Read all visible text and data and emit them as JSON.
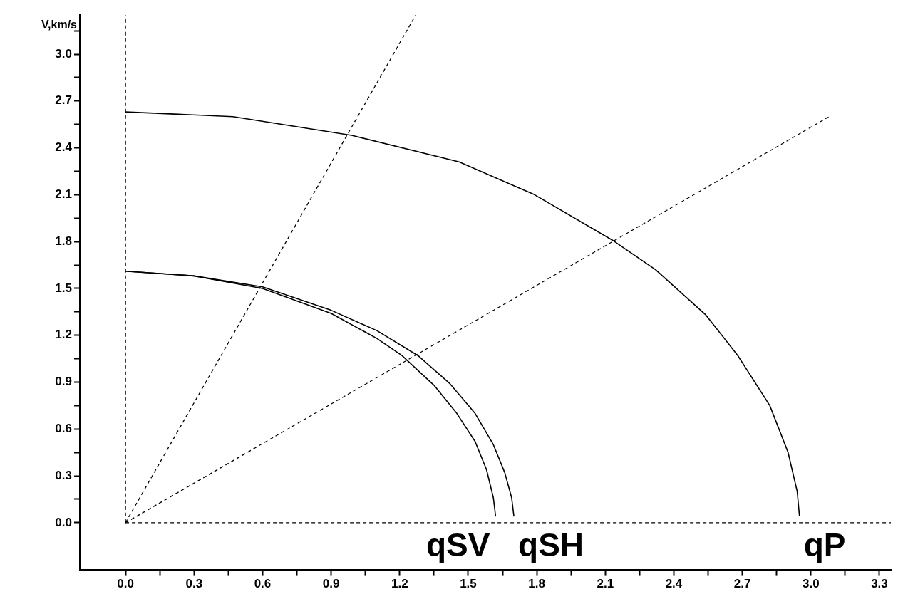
{
  "chart_data": {
    "type": "line",
    "ylabel": "V,km/s",
    "xlim": [
      -0.2,
      3.35
    ],
    "ylim": [
      -0.3,
      3.25
    ],
    "xticks": [
      {
        "value": 0,
        "label": "0.0"
      },
      {
        "value": 0.15,
        "label": null
      },
      0.3,
      {
        "value": 0.45,
        "label": null
      },
      0.6,
      {
        "value": 0.75,
        "label": null
      },
      0.9,
      {
        "value": 1.05,
        "label": null
      },
      1.2,
      {
        "value": 1.35,
        "label": null
      },
      1.5,
      {
        "value": 1.65,
        "label": null
      },
      1.8,
      {
        "value": 1.95,
        "label": null
      },
      2.1,
      {
        "value": 2.25,
        "label": null
      },
      2.4,
      {
        "value": 2.55,
        "label": null
      },
      2.7,
      {
        "value": 2.85,
        "label": null
      },
      {
        "value": 3,
        "label": "3.0"
      },
      {
        "value": 3.15,
        "label": null
      },
      3.3
    ],
    "yticks": [
      {
        "value": 0,
        "label": "0.0"
      },
      {
        "value": 0.15,
        "label": null
      },
      0.3,
      {
        "value": 0.45,
        "label": null
      },
      0.6,
      {
        "value": 0.75,
        "label": null
      },
      0.9,
      {
        "value": 1.05,
        "label": null
      },
      1.2,
      {
        "value": 1.35,
        "label": null
      },
      1.5,
      {
        "value": 1.65,
        "label": null
      },
      1.8,
      {
        "value": 1.95,
        "label": null
      },
      2.1,
      {
        "value": 2.25,
        "label": null
      },
      2.4,
      {
        "value": 2.55,
        "label": null
      },
      2.7,
      {
        "value": 2.85,
        "label": null
      },
      {
        "value": 3,
        "label": "3.0"
      },
      {
        "value": 3.15,
        "label": null
      }
    ],
    "grid": false,
    "legend": false,
    "marker": "none",
    "line_style": "solid",
    "series": [
      {
        "name": "qSV",
        "color": "#000000",
        "x": [
          0,
          0.3,
          0.6,
          0.9,
          1.1,
          1.21,
          1.35,
          1.45,
          1.53,
          1.58,
          1.61,
          1.62
        ],
        "values": [
          1.61,
          1.58,
          1.5,
          1.34,
          1.18,
          1.07,
          0.88,
          0.7,
          0.52,
          0.34,
          0.16,
          0.04
        ]
      },
      {
        "name": "qSH",
        "color": "#000000",
        "x": [
          0,
          0.3,
          0.6,
          0.9,
          1.1,
          1.28,
          1.42,
          1.53,
          1.61,
          1.66,
          1.69,
          1.7
        ],
        "values": [
          1.61,
          1.58,
          1.51,
          1.36,
          1.23,
          1.07,
          0.89,
          0.7,
          0.5,
          0.32,
          0.16,
          0.04
        ]
      },
      {
        "name": "qP",
        "color": "#000000",
        "x": [
          0,
          0.47,
          0.99,
          1.46,
          1.79,
          2.13,
          2.32,
          2.54,
          2.68,
          2.82,
          2.9,
          2.94,
          2.95
        ],
        "values": [
          2.63,
          2.6,
          2.48,
          2.31,
          2.1,
          1.81,
          1.62,
          1.33,
          1.07,
          0.75,
          0.45,
          0.2,
          0.04
        ]
      },
      {
        "color": "#000000",
        "line_style": "dashed",
        "x": [
          0,
          0
        ],
        "values": [
          0,
          3.25
        ]
      },
      {
        "color": "#000000",
        "line_style": "dashed",
        "x": [
          0,
          3.35
        ],
        "values": [
          0,
          0
        ]
      },
      {
        "color": "#000000",
        "line_style": "dashed",
        "x": [
          0,
          1.27
        ],
        "values": [
          0,
          3.25
        ]
      },
      {
        "color": "#000000",
        "line_style": "dashed",
        "x": [
          0,
          3.08
        ],
        "values": [
          0,
          2.6
        ]
      }
    ]
  }
}
